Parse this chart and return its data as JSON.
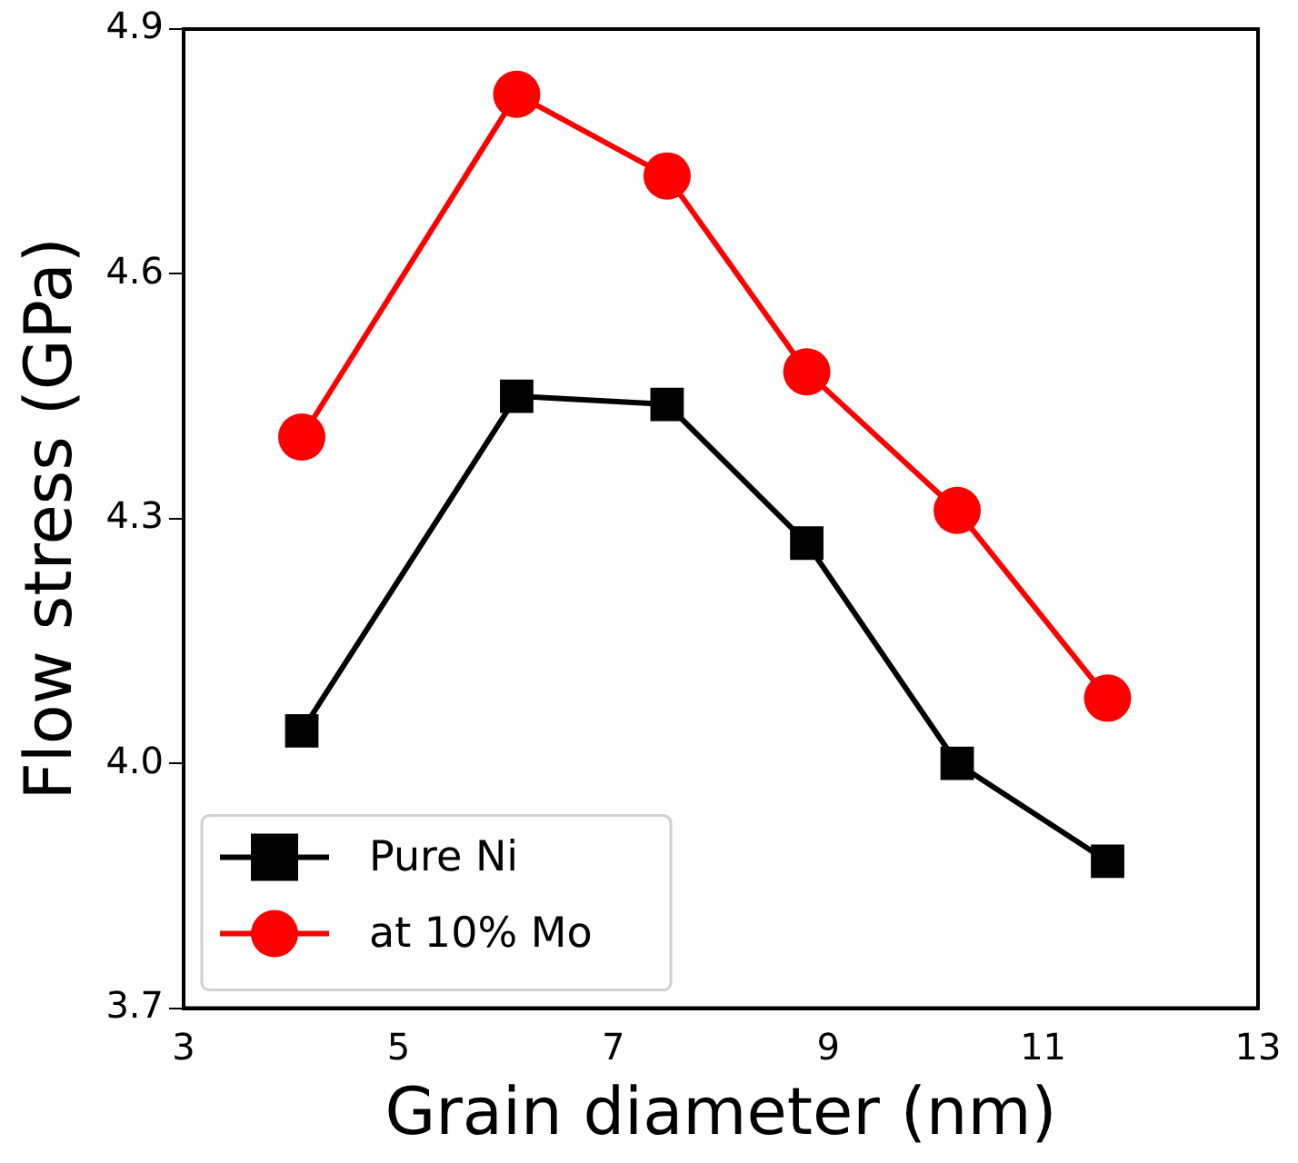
{
  "chart_data": {
    "type": "line",
    "xlabel": "Grain diameter (nm)",
    "ylabel": "Flow stress (GPa)",
    "x": [
      4.1,
      6.1,
      7.5,
      8.8,
      10.2,
      11.6
    ],
    "series": [
      {
        "name": "Pure Ni",
        "color": "#000000",
        "marker": "square",
        "values": [
          4.04,
          4.45,
          4.44,
          4.27,
          4.0,
          3.88
        ]
      },
      {
        "name": "at 10% Mo",
        "color": "#ff0000",
        "marker": "circle",
        "values": [
          4.4,
          4.82,
          4.72,
          4.48,
          4.31,
          4.08
        ]
      }
    ],
    "xlim": [
      3,
      13
    ],
    "xticks": [
      3,
      5,
      7,
      9,
      11,
      13
    ],
    "ylim": [
      3.7,
      4.9
    ],
    "yticks": [
      {
        "value": 3.7,
        "label": "3.7"
      },
      {
        "value": 4.0,
        "label": "4.0"
      },
      {
        "value": 4.3,
        "label": "4.3"
      },
      {
        "value": 4.6,
        "label": "4.6"
      },
      {
        "value": 4.9,
        "label": "4.9"
      }
    ],
    "grid": false,
    "legend": "bottom left"
  }
}
